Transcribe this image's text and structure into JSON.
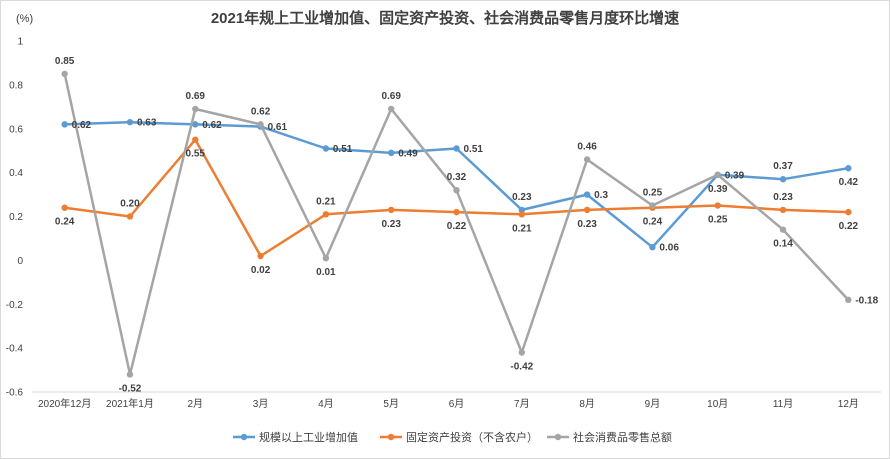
{
  "chart_data": {
    "type": "line",
    "title": "2021年规上工业增加值、固定资产投资、社会消费品零售月度环比增速",
    "ylabel": "(%)",
    "xlabel": "",
    "ylim": [
      -0.6,
      1.0
    ],
    "yticks": [
      "1",
      "0.8",
      "0.6",
      "0.4",
      "0.2",
      "0",
      "-0.2",
      "-0.4",
      "-0.6"
    ],
    "grid": false,
    "legend": "bottom",
    "categories": [
      "2020年12月",
      "2021年1月",
      "2月",
      "3月",
      "4月",
      "5月",
      "6月",
      "7月",
      "8月",
      "9月",
      "10月",
      "11月",
      "12月"
    ],
    "series": [
      {
        "name": "规模以上工业增加值",
        "color": "#5b9bd5",
        "values": [
          0.62,
          0.63,
          0.62,
          0.61,
          0.51,
          0.49,
          0.51,
          0.23,
          0.3,
          0.06,
          0.39,
          0.37,
          0.42
        ],
        "labels": [
          "0.62",
          "0.63",
          "0.62",
          "0.61",
          "0.51",
          "0.49",
          "0.51",
          "0.23",
          "0.3",
          "0.06",
          "0.39",
          "0.37",
          "0.42"
        ]
      },
      {
        "name": "固定资产投资（不含农户）",
        "color": "#ed7d31",
        "values": [
          0.24,
          0.2,
          0.55,
          0.02,
          0.21,
          0.23,
          0.22,
          0.21,
          0.23,
          0.24,
          0.25,
          0.23,
          0.22
        ],
        "labels": [
          "0.24",
          "0.20",
          "0.55",
          "0.02",
          "0.21",
          "0.23",
          "0.22",
          "0.21",
          "0.23",
          "0.24",
          "0.25",
          "0.23",
          "0.22"
        ]
      },
      {
        "name": "社会消费品零售总额",
        "color": "#a5a5a5",
        "values": [
          0.85,
          -0.52,
          0.69,
          0.62,
          0.01,
          0.69,
          0.32,
          -0.42,
          0.46,
          0.25,
          0.39,
          0.14,
          -0.18
        ],
        "labels": [
          "0.85",
          "-0.52",
          "0.69",
          "0.62",
          "0.01",
          "0.69",
          "0.32",
          "-0.42",
          "0.46",
          "0.25",
          "0.39",
          "0.14",
          "-0.18"
        ]
      }
    ]
  }
}
